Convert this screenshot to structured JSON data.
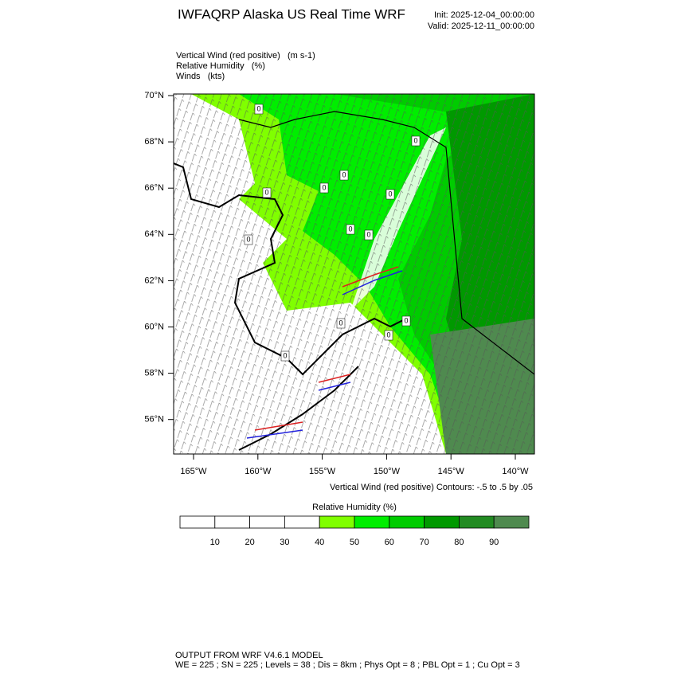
{
  "header": {
    "title": "IWFAQRP Alaska US Real Time WRF",
    "init": "Init: 2025-12-04_00:00:00",
    "valid": "Valid: 2025-12-11_00:00:00"
  },
  "fields": [
    "Vertical Wind (red positive)   (m s-1)",
    "Relative Humidity   (%)",
    "Winds   (kts)"
  ],
  "map": {
    "lat_labels": [
      "70°N",
      "68°N",
      "66°N",
      "64°N",
      "62°N",
      "60°N",
      "58°N",
      "56°N"
    ],
    "lon_labels": [
      "165°W",
      "160°W",
      "155°W",
      "150°W",
      "145°W",
      "140°W"
    ],
    "contour_note": "Vertical Wind (red positive) Contours: -.5 to .5 by .05",
    "contour_labels": [
      "0",
      "0",
      "0",
      "0",
      "0",
      "0",
      "0",
      "0",
      "0",
      "0",
      "0",
      "0",
      "0"
    ]
  },
  "colorbar": {
    "title": "Relative Humidity  (%)",
    "ticks": [
      10,
      20,
      30,
      40,
      50,
      60,
      70,
      80,
      90
    ],
    "colors": [
      "#ffffff",
      "#ffffff",
      "#ffffff",
      "#ffffff",
      "#80ff00",
      "#00ee00",
      "#00cc00",
      "#009900",
      "#228b22",
      "#4f8a4f"
    ]
  },
  "footer": {
    "line1": "OUTPUT FROM WRF V4.6.1 MODEL",
    "line2": "WE = 225 ; SN = 225 ; Levels = 38 ; Dis = 8km ; Phys Opt = 8 ; PBL Opt = 1 ; Cu Opt = 3"
  }
}
